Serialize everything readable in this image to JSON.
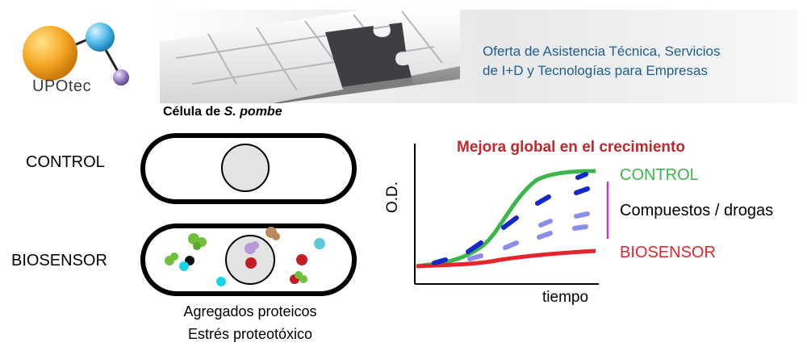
{
  "banner": {
    "logo_text": "UPOtec",
    "tagline_line1": "Oferta de Asistencia Técnica, Servicios",
    "tagline_line2": "de I+D y Tecnologías para Empresas",
    "colors": {
      "tagline": "#1f5f8f",
      "logo_orange": "#f5a623",
      "logo_blue": "#4db8e8",
      "logo_purple": "#9b7fc4"
    }
  },
  "cell_diagram": {
    "title_prefix": "Célula de ",
    "title_species": "S. pombe",
    "row_control": "CONTROL",
    "row_biosensor": "BIOSENSOR",
    "caption_line1": "Agregados proteicos",
    "caption_line2": "Estrés proteotóxico"
  },
  "growth_chart": {
    "title": "Mejora global en el crecimiento",
    "xlabel": "tiempo",
    "ylabel": "O.D.",
    "legend_control": "CONTROL",
    "legend_compounds": "Compuestos / drogas",
    "legend_biosensor": "BIOSENSOR",
    "colors": {
      "title": "#c4262e",
      "control": "#3cb54a",
      "biosensor": "#e3262e",
      "compounds_dark": "#1428c8",
      "compounds_light": "#8a8ee8",
      "bracket": "#c03cc8"
    }
  }
}
